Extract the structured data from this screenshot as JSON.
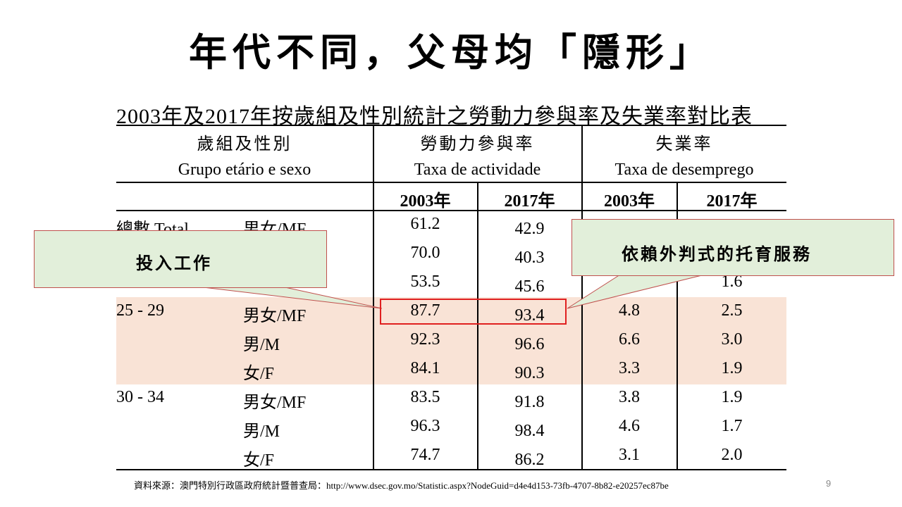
{
  "title": "年代不同，父母均「隱形」",
  "subtitle": "2003年及2017年按歲組及性別統計之勞動力參與率及失業率對比表",
  "headers": {
    "group_zh": "歲組及性別",
    "group_pt": "Grupo etário e sexo",
    "activity_zh": "勞動力參與率",
    "activity_pt": "Taxa de actividade",
    "unemp_zh": "失業率",
    "unemp_pt": "Taxa de desemprego",
    "years": [
      "2003年",
      "2017年",
      "2003年",
      "2017年"
    ]
  },
  "rows": [
    {
      "age": "總數 Total",
      "sex": "男女/MF",
      "act2003": "61.2",
      "act2017": "42.9",
      "un2003": "",
      "un2017": ""
    },
    {
      "age": "",
      "sex": "",
      "act2003": "70.0",
      "act2017": "40.3",
      "un2003": "",
      "un2017": ""
    },
    {
      "age": "",
      "sex": "",
      "act2003": "53.5",
      "act2017": "45.6",
      "un2003": "",
      "un2017": "1.6"
    },
    {
      "age": "25 - 29",
      "sex": "男女/MF",
      "act2003": "87.7",
      "act2017": "93.4",
      "un2003": "4.8",
      "un2017": "2.5"
    },
    {
      "age": "",
      "sex": "男/M",
      "act2003": "92.3",
      "act2017": "96.6",
      "un2003": "6.6",
      "un2017": "3.0"
    },
    {
      "age": "",
      "sex": "女/F",
      "act2003": "84.1",
      "act2017": "90.3",
      "un2003": "3.3",
      "un2017": "1.9"
    },
    {
      "age": "30 - 34",
      "sex": "男女/MF",
      "act2003": "83.5",
      "act2017": "91.8",
      "un2003": "3.8",
      "un2017": "1.9"
    },
    {
      "age": "",
      "sex": "男/M",
      "act2003": "96.3",
      "act2017": "98.4",
      "un2003": "4.6",
      "un2017": "1.7"
    },
    {
      "age": "",
      "sex": "女/F",
      "act2003": "74.7",
      "act2017": "86.2",
      "un2003": "3.1",
      "un2017": "2.0"
    }
  ],
  "callouts": {
    "left": "投入工作",
    "right": "依賴外判式的托育服務"
  },
  "source": "資料來源：澳門特別行政區政府統計暨普查局：http://www.dsec.gov.mo/Statistic.aspx?NodeGuid=d4e4d153-73fb-4707-8b82-e20257ec87be",
  "page_number": "9",
  "colors": {
    "highlight_band": "#f9e3d6",
    "callout_fill": "#e2efda",
    "callout_border": "#c0504d",
    "highlight_box": "#e02020"
  }
}
